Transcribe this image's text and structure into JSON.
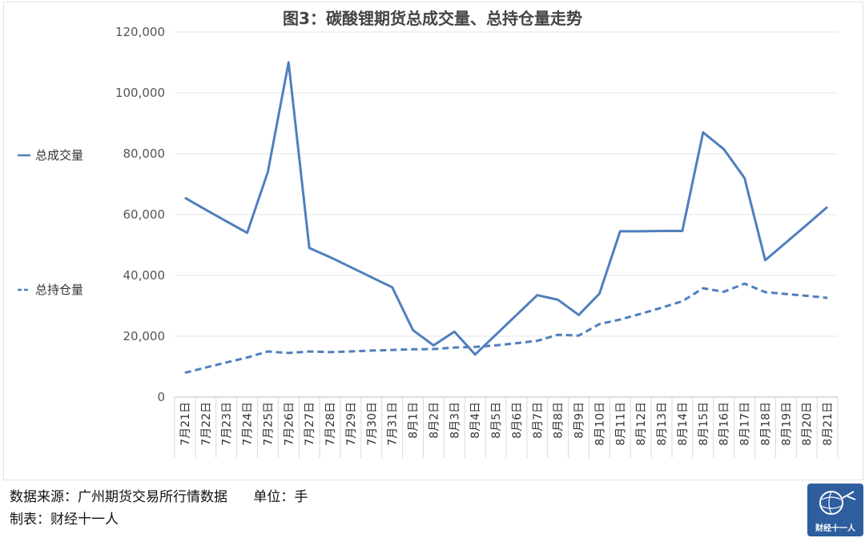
{
  "chart_data": {
    "type": "line",
    "title": "图3：碳酸锂期货总成交量、总持仓量走势",
    "categories": [
      "7月21日",
      "7月22日",
      "7月23日",
      "7月24日",
      "7月25日",
      "7月26日",
      "7月27日",
      "7月28日",
      "7月29日",
      "7月30日",
      "7月31日",
      "8月1日",
      "8月2日",
      "8月3日",
      "8月4日",
      "8月5日",
      "8月6日",
      "8月7日",
      "8月8日",
      "8月9日",
      "8月10日",
      "8月11日",
      "8月12日",
      "8月13日",
      "8月14日",
      "8月15日",
      "8月16日",
      "8月17日",
      "8月18日",
      "8月19日",
      "8月20日",
      "8月21日"
    ],
    "series": [
      {
        "name": "总成交量",
        "style": "solid",
        "color": "#4f7fbd",
        "values": [
          65500,
          61600,
          57800,
          54000,
          74000,
          110000,
          49000,
          46000,
          42700,
          39400,
          36100,
          22000,
          17000,
          21500,
          14000,
          20500,
          27000,
          33500,
          32000,
          27000,
          34000,
          54500,
          54500,
          54600,
          54600,
          87000,
          81500,
          72000,
          45000,
          50800,
          56600,
          62500
        ]
      },
      {
        "name": "总持仓量",
        "style": "dashed",
        "color": "#4f7fbd",
        "values": [
          8000,
          9700,
          11400,
          13000,
          15000,
          14500,
          15000,
          14800,
          15000,
          15300,
          15500,
          15700,
          15800,
          16300,
          16500,
          17000,
          17700,
          18500,
          20500,
          20200,
          24000,
          25500,
          27400,
          29400,
          31500,
          35800,
          34600,
          37300,
          34500,
          33900,
          33300,
          32600
        ]
      }
    ],
    "y_ticks": [
      "0",
      "20,000",
      "40,000",
      "60,000",
      "80,000",
      "100,000",
      "120,000"
    ],
    "ylim": [
      0,
      120000
    ],
    "grid": true,
    "legend_position": "left"
  },
  "footer": {
    "source_line": "数据来源：广州期货交易所行情数据      单位：手",
    "maker_line": "制表：财经十一人"
  },
  "logo": {
    "text": "财经十一人",
    "color": "#2e5e9e"
  }
}
